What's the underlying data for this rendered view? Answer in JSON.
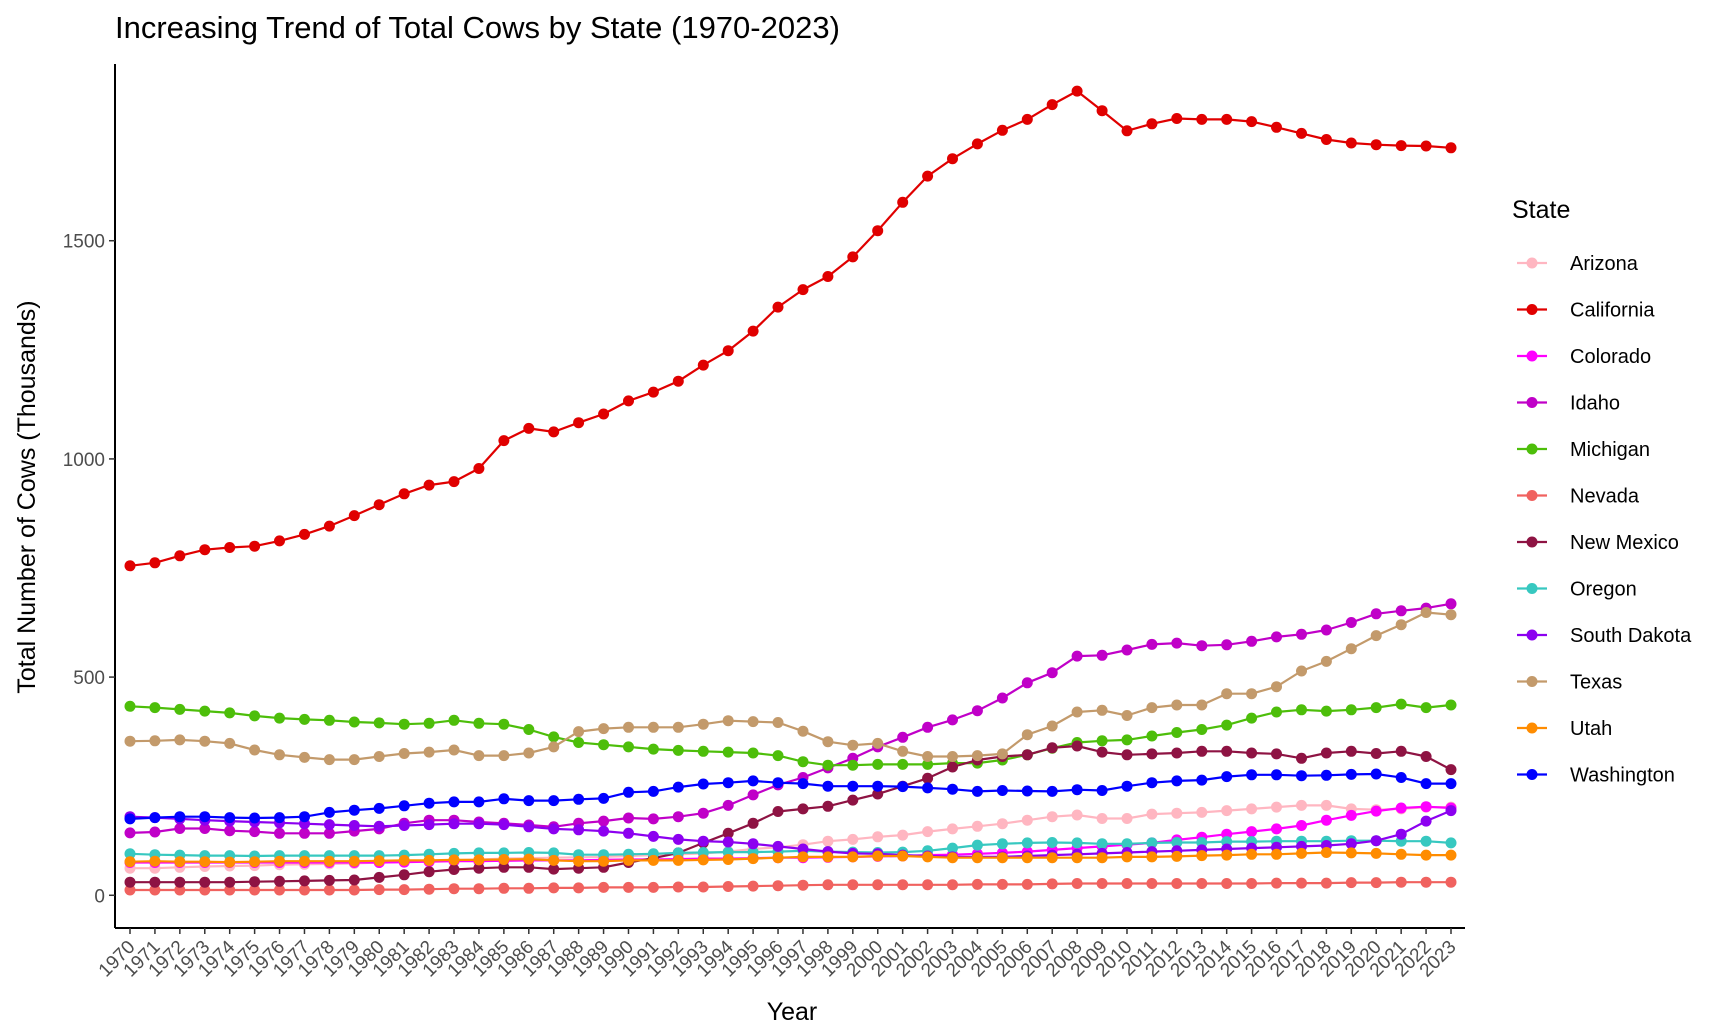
{
  "chart_data": {
    "type": "line",
    "title": "Increasing Trend of Total Cows by State (1970-2023)",
    "xlabel": "Year",
    "ylabel": "Total Number of Cows (Thousands)",
    "x": [
      1970,
      1971,
      1972,
      1973,
      1974,
      1975,
      1976,
      1977,
      1978,
      1979,
      1980,
      1981,
      1982,
      1983,
      1984,
      1985,
      1986,
      1987,
      1988,
      1989,
      1990,
      1991,
      1992,
      1993,
      1994,
      1995,
      1996,
      1997,
      1998,
      1999,
      2000,
      2001,
      2002,
      2003,
      2004,
      2005,
      2006,
      2007,
      2008,
      2009,
      2010,
      2011,
      2012,
      2013,
      2014,
      2015,
      2016,
      2017,
      2018,
      2019,
      2020,
      2021,
      2022,
      2023
    ],
    "x_tick_labels": [
      "1970",
      "1971",
      "1972",
      "1973",
      "1974",
      "1975",
      "1976",
      "1977",
      "1978",
      "1979",
      "1980",
      "1981",
      "1982",
      "1983",
      "1984",
      "1985",
      "1986",
      "1987",
      "1988",
      "1989",
      "1990",
      "1991",
      "1992",
      "1993",
      "1994",
      "1995",
      "1996",
      "1997",
      "1998",
      "1999",
      "2000",
      "2001",
      "2002",
      "2003",
      "2004",
      "2005",
      "2006",
      "2007",
      "2008",
      "2009",
      "2010",
      "2011",
      "2012",
      "2013",
      "2014",
      "2015",
      "2016",
      "2017",
      "2018",
      "2019",
      "2020",
      "2021",
      "2022",
      "2023"
    ],
    "ylim": [
      -75,
      1905
    ],
    "y_ticks": [
      0,
      500,
      1000,
      1500
    ],
    "y_tick_labels": [
      "0",
      "500",
      "1000",
      "1500"
    ],
    "grid": false,
    "legend": {
      "title": "State",
      "position": "right"
    },
    "series": [
      {
        "name": "Arizona",
        "color": "#ffb6c1",
        "values": [
          62,
          62,
          64,
          66,
          67,
          68,
          70,
          71,
          72,
          73,
          75,
          76,
          78,
          80,
          82,
          84,
          85,
          86,
          87,
          88,
          90,
          92,
          94,
          96,
          100,
          106,
          110,
          116,
          124,
          128,
          134,
          138,
          146,
          152,
          158,
          164,
          172,
          180,
          184,
          176,
          176,
          186,
          188,
          190,
          194,
          198,
          202,
          206,
          206,
          198,
          196,
          198,
          202,
          202
        ]
      },
      {
        "name": "California",
        "color": "#e00000",
        "values": [
          755,
          762,
          778,
          792,
          797,
          800,
          812,
          827,
          846,
          870,
          895,
          920,
          940,
          948,
          978,
          1042,
          1070,
          1062,
          1083,
          1103,
          1133,
          1153,
          1178,
          1215,
          1248,
          1293,
          1348,
          1388,
          1418,
          1463,
          1523,
          1588,
          1648,
          1688,
          1722,
          1753,
          1778,
          1812,
          1843,
          1798,
          1752,
          1768,
          1780,
          1778,
          1778,
          1773,
          1760,
          1746,
          1732,
          1724,
          1720,
          1718,
          1717,
          1713
        ]
      },
      {
        "name": "Colorado",
        "color": "#ff00ff",
        "values": [
          75,
          75,
          75,
          75,
          75,
          75,
          75,
          75,
          75,
          75,
          75,
          76,
          77,
          78,
          78,
          79,
          80,
          80,
          80,
          81,
          82,
          82,
          83,
          84,
          84,
          85,
          86,
          86,
          87,
          88,
          89,
          90,
          92,
          93,
          95,
          97,
          100,
          104,
          108,
          112,
          116,
          120,
          127,
          133,
          140,
          146,
          152,
          160,
          172,
          183,
          193,
          200,
          203,
          200
        ]
      },
      {
        "name": "Idaho",
        "color": "#c000c8",
        "values": [
          143,
          145,
          153,
          153,
          148,
          146,
          142,
          142,
          142,
          147,
          152,
          165,
          172,
          172,
          168,
          165,
          161,
          157,
          165,
          170,
          177,
          175,
          180,
          188,
          206,
          230,
          253,
          270,
          292,
          314,
          340,
          362,
          385,
          402,
          423,
          452,
          487,
          510,
          548,
          550,
          562,
          575,
          578,
          572,
          574,
          582,
          592,
          598,
          608,
          625,
          645,
          652,
          658,
          668
        ]
      },
      {
        "name": "Michigan",
        "color": "#4dbe0a",
        "values": [
          433,
          430,
          426,
          422,
          418,
          411,
          406,
          403,
          401,
          397,
          395,
          392,
          394,
          401,
          394,
          392,
          380,
          363,
          350,
          345,
          340,
          335,
          332,
          330,
          328,
          326,
          320,
          306,
          298,
          298,
          300,
          300,
          300,
          303,
          303,
          310,
          322,
          337,
          350,
          354,
          356,
          365,
          373,
          380,
          390,
          406,
          420,
          425,
          422,
          425,
          430,
          438,
          430,
          436
        ]
      },
      {
        "name": "Nevada",
        "color": "#f0625f",
        "values": [
          12,
          12,
          12,
          12,
          12,
          12,
          12,
          12,
          12,
          12,
          13,
          13,
          14,
          15,
          15,
          16,
          16,
          17,
          17,
          18,
          18,
          18,
          19,
          19,
          20,
          21,
          22,
          23,
          24,
          24,
          24,
          24,
          24,
          24,
          25,
          25,
          25,
          26,
          27,
          27,
          27,
          27,
          27,
          27,
          27,
          27,
          28,
          28,
          28,
          29,
          29,
          30,
          30,
          30
        ]
      },
      {
        "name": "New Mexico",
        "color": "#8e1343",
        "values": [
          30,
          30,
          30,
          30,
          30,
          31,
          32,
          33,
          34,
          35,
          41,
          47,
          54,
          59,
          62,
          64,
          64,
          60,
          62,
          64,
          75,
          85,
          97,
          120,
          142,
          165,
          192,
          198,
          204,
          218,
          232,
          250,
          268,
          294,
          310,
          318,
          322,
          338,
          342,
          328,
          322,
          324,
          326,
          330,
          330,
          326,
          324,
          314,
          326,
          330,
          325,
          330,
          318,
          288
        ]
      },
      {
        "name": "Oregon",
        "color": "#37c8c0",
        "values": [
          95,
          93,
          92,
          91,
          91,
          90,
          91,
          91,
          91,
          91,
          91,
          92,
          94,
          96,
          97,
          97,
          98,
          97,
          93,
          93,
          94,
          95,
          97,
          98,
          99,
          99,
          100,
          102,
          100,
          99,
          98,
          99,
          102,
          108,
          115,
          118,
          120,
          121,
          120,
          118,
          118,
          120,
          121,
          121,
          123,
          123,
          124,
          124,
          124,
          125,
          125,
          124,
          124,
          120
        ]
      },
      {
        "name": "South Dakota",
        "color": "#8c00f0",
        "values": [
          180,
          178,
          175,
          172,
          170,
          168,
          166,
          164,
          162,
          160,
          158,
          160,
          162,
          164,
          164,
          162,
          157,
          152,
          150,
          147,
          142,
          135,
          128,
          124,
          122,
          118,
          112,
          106,
          100,
          96,
          95,
          92,
          90,
          88,
          88,
          88,
          90,
          92,
          94,
          96,
          98,
          100,
          102,
          104,
          106,
          108,
          110,
          112,
          114,
          118,
          125,
          140,
          170,
          194
        ]
      },
      {
        "name": "Texas",
        "color": "#c39a6b",
        "values": [
          353,
          354,
          356,
          353,
          348,
          333,
          322,
          316,
          311,
          311,
          318,
          325,
          328,
          333,
          320,
          320,
          326,
          340,
          375,
          382,
          385,
          385,
          385,
          392,
          400,
          398,
          396,
          376,
          352,
          344,
          348,
          330,
          318,
          318,
          320,
          324,
          368,
          388,
          420,
          424,
          412,
          430,
          436,
          436,
          462,
          462,
          478,
          514,
          536,
          565,
          595,
          620,
          648,
          643
        ]
      },
      {
        "name": "Utah",
        "color": "#ff8c00",
        "values": [
          77,
          78,
          77,
          77,
          76,
          77,
          78,
          78,
          78,
          78,
          79,
          80,
          80,
          81,
          81,
          82,
          83,
          80,
          78,
          78,
          80,
          80,
          80,
          81,
          82,
          84,
          86,
          88,
          88,
          88,
          90,
          90,
          88,
          86,
          86,
          86,
          86,
          86,
          86,
          86,
          88,
          88,
          89,
          91,
          92,
          94,
          94,
          96,
          98,
          97,
          96,
          94,
          92,
          92
        ]
      },
      {
        "name": "Washington",
        "color": "#0000ff",
        "values": [
          175,
          178,
          180,
          180,
          178,
          177,
          178,
          180,
          190,
          195,
          199,
          205,
          211,
          214,
          214,
          221,
          217,
          217,
          220,
          222,
          236,
          238,
          248,
          255,
          258,
          262,
          258,
          256,
          250,
          250,
          250,
          249,
          246,
          243,
          238,
          240,
          239,
          238,
          242,
          240,
          250,
          258,
          262,
          264,
          272,
          276,
          276,
          274,
          275,
          277,
          278,
          270,
          256,
          256
        ]
      }
    ]
  }
}
